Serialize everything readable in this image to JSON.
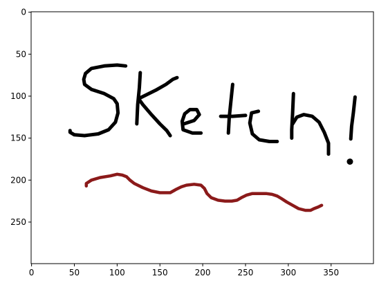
{
  "chart_data": {
    "type": "image",
    "title": "",
    "xlabel": "",
    "ylabel": "",
    "xlim": [
      -0.5,
      399.5
    ],
    "ylim": [
      299.5,
      -0.5
    ],
    "x_axis_inverted": false,
    "y_axis_inverted": true,
    "grid": false,
    "legend": "none",
    "x_ticks": [
      0,
      50,
      100,
      150,
      200,
      250,
      300,
      350
    ],
    "y_ticks": [
      0,
      50,
      100,
      150,
      200,
      250
    ],
    "x_tick_labels": [
      "0",
      "50",
      "100",
      "150",
      "200",
      "250",
      "300",
      "350"
    ],
    "y_tick_labels": [
      "0",
      "50",
      "100",
      "150",
      "200",
      "250"
    ],
    "image_content": {
      "background": "#ffffff",
      "handwritten_text": "SKetch!",
      "ink_color": "#000000",
      "underline_color": "#8b1a1a",
      "strokes": [
        {
          "name": "S",
          "color": "#000000",
          "points": [
            [
              110,
              64
            ],
            [
              100,
              63
            ],
            [
              85,
              64
            ],
            [
              70,
              67
            ],
            [
              63,
              73
            ],
            [
              61,
              80
            ],
            [
              62,
              86
            ],
            [
              70,
              92
            ],
            [
              85,
              97
            ],
            [
              96,
              103
            ],
            [
              100,
              109
            ],
            [
              101,
              120
            ],
            [
              98,
              131
            ],
            [
              90,
              140
            ],
            [
              78,
              145
            ],
            [
              62,
              147
            ],
            [
              50,
              146
            ],
            [
              45,
              143
            ],
            [
              45,
              141
            ]
          ]
        },
        {
          "name": "K-stem",
          "color": "#000000",
          "points": [
            [
              127,
              72
            ],
            [
              126,
              90
            ],
            [
              124,
              110
            ],
            [
              123,
              133
            ]
          ]
        },
        {
          "name": "K-arms",
          "color": "#000000",
          "points": [
            [
              170,
              78
            ],
            [
              165,
              80
            ],
            [
              157,
              86
            ],
            [
              145,
              93
            ],
            [
              133,
              99
            ],
            [
              125,
              103
            ],
            [
              130,
              110
            ],
            [
              140,
              122
            ],
            [
              150,
              133
            ],
            [
              158,
              141
            ],
            [
              162,
              147
            ]
          ]
        },
        {
          "name": "e",
          "color": "#000000",
          "points": [
            [
              178,
              133
            ],
            [
              190,
              129
            ],
            [
              196,
              122
            ],
            [
              193,
              116
            ],
            [
              185,
              116
            ],
            [
              179,
              121
            ],
            [
              176,
              130
            ],
            [
              177,
              140
            ],
            [
              188,
              144
            ],
            [
              198,
              144
            ]
          ]
        },
        {
          "name": "t-stem",
          "color": "#000000",
          "points": [
            [
              235,
              86
            ],
            [
              233,
              105
            ],
            [
              231,
              125
            ],
            [
              230,
              144
            ]
          ]
        },
        {
          "name": "t-cross",
          "color": "#000000",
          "points": [
            [
              221,
              124
            ],
            [
              235,
              124
            ],
            [
              250,
              123
            ]
          ]
        },
        {
          "name": "c",
          "color": "#000000",
          "points": [
            [
              265,
              118
            ],
            [
              257,
              120
            ],
            [
              255,
              132
            ],
            [
              258,
              145
            ],
            [
              266,
              152
            ],
            [
              278,
              154
            ],
            [
              287,
              154
            ]
          ]
        },
        {
          "name": "h-stem",
          "color": "#000000",
          "points": [
            [
              306,
              97
            ],
            [
              305,
              120
            ],
            [
              304,
              140
            ],
            [
              304,
              150
            ]
          ]
        },
        {
          "name": "h-arch",
          "color": "#000000",
          "points": [
            [
              305,
              133
            ],
            [
              310,
              125
            ],
            [
              318,
              122
            ],
            [
              328,
              124
            ],
            [
              336,
              131
            ],
            [
              342,
              143
            ],
            [
              347,
              156
            ],
            [
              347,
              169
            ]
          ]
        },
        {
          "name": "exclamation-line",
          "color": "#000000",
          "points": [
            [
              378,
              101
            ],
            [
              376,
              120
            ],
            [
              374,
              136
            ],
            [
              373,
              151
            ]
          ]
        },
        {
          "name": "underline",
          "color": "#8b1a1a",
          "points": [
            [
              64,
              207
            ],
            [
              64,
              204
            ],
            [
              70,
              200
            ],
            [
              80,
              197
            ],
            [
              92,
              195
            ],
            [
              100,
              193
            ],
            [
              106,
              194
            ],
            [
              111,
              196
            ],
            [
              115,
              200
            ],
            [
              120,
              204
            ],
            [
              130,
              209
            ],
            [
              140,
              213
            ],
            [
              150,
              215
            ],
            [
              162,
              215
            ],
            [
              169,
              211
            ],
            [
              175,
              208
            ],
            [
              181,
              206
            ],
            [
              190,
              205
            ],
            [
              198,
              206
            ],
            [
              202,
              210
            ],
            [
              205,
              216
            ],
            [
              210,
              221
            ],
            [
              218,
              224
            ],
            [
              226,
              225
            ],
            [
              234,
              225
            ],
            [
              240,
              224
            ],
            [
              245,
              221
            ],
            [
              251,
              218
            ],
            [
              258,
              216
            ],
            [
              266,
              216
            ],
            [
              274,
              216
            ],
            [
              281,
              217
            ],
            [
              287,
              219
            ],
            [
              292,
              222
            ],
            [
              298,
              226
            ],
            [
              305,
              230
            ],
            [
              312,
              234
            ],
            [
              320,
              236
            ],
            [
              326,
              236
            ],
            [
              330,
              234
            ],
            [
              335,
              232
            ],
            [
              339,
              230
            ]
          ]
        }
      ],
      "dots": [
        {
          "name": "exclamation-dot",
          "color": "#000000",
          "x": 372,
          "y": 178
        }
      ]
    }
  }
}
